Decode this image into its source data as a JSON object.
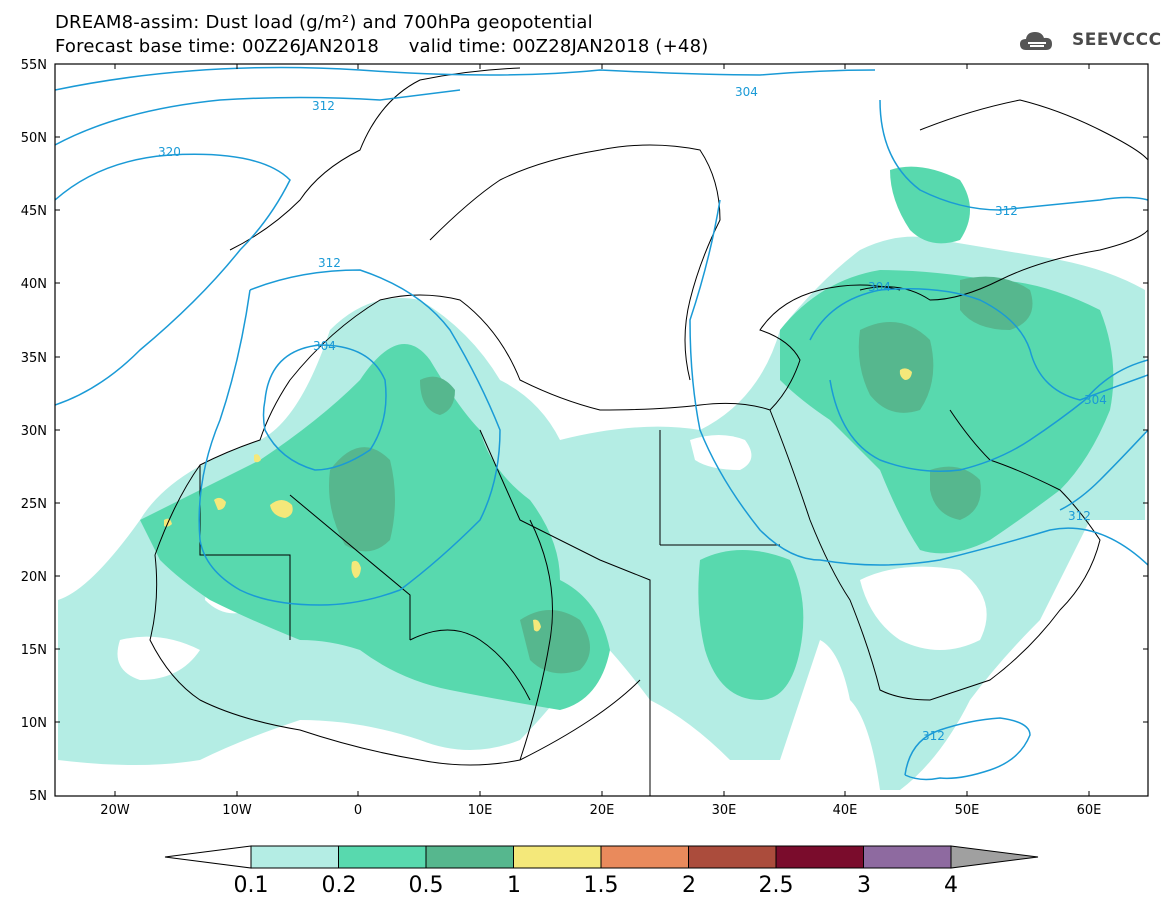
{
  "header": {
    "line1": "DREAM8-assim: Dust load (g/m²) and 700hPa geopotential",
    "line2": "Forecast base time: 00Z26JAN2018     valid time: 00Z28JAN2018 (+48)"
  },
  "logo": {
    "text": "SEEVCCC",
    "icon": "cloud-logo-icon"
  },
  "map": {
    "lat_labels": [
      "55N",
      "50N",
      "45N",
      "40N",
      "35N",
      "30N",
      "25N",
      "20N",
      "15N",
      "10N",
      "5N"
    ],
    "lon_labels": [
      "20W",
      "10W",
      "0",
      "10E",
      "20E",
      "30E",
      "40E",
      "50E",
      "60E"
    ],
    "contour_labels": [
      "312",
      "304",
      "320",
      "312",
      "304",
      "304",
      "312",
      "304",
      "312",
      "312"
    ],
    "colors": {
      "land_border": "#000000",
      "contour": "#1a9ad6"
    }
  },
  "colorbar": {
    "labels": [
      "0.1",
      "0.2",
      "0.5",
      "1",
      "1.5",
      "2",
      "2.5",
      "3",
      "4"
    ],
    "colors": [
      "#ffffff",
      "#b4ede4",
      "#58d9ae",
      "#56b78e",
      "#f4e87a",
      "#e98a5c",
      "#ab4c3c",
      "#7a0c2c",
      "#8e6aa0",
      "#a0a0a0"
    ]
  }
}
